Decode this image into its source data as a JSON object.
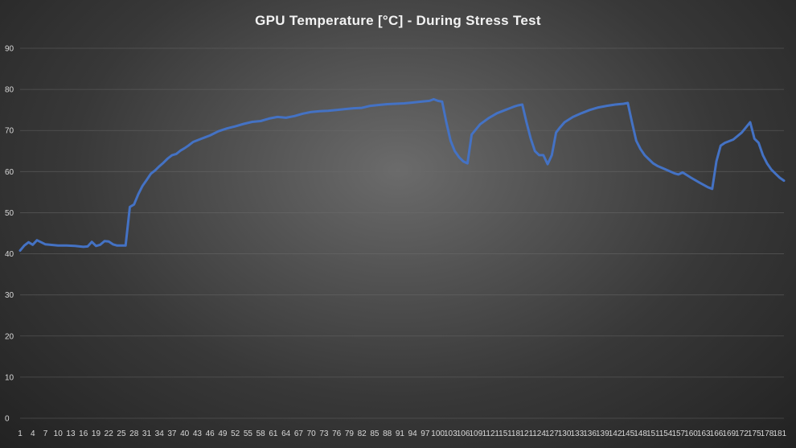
{
  "chart_data": {
    "type": "line",
    "title": "GPU Temperature  [°C] - During  Stress  Test",
    "xlabel": "",
    "ylabel": "",
    "ylim": [
      0,
      90
    ],
    "yticks": [
      0,
      10,
      20,
      30,
      40,
      50,
      60,
      70,
      80,
      90
    ],
    "xlim": [
      1,
      182
    ],
    "xticks": [
      1,
      4,
      7,
      10,
      13,
      16,
      19,
      22,
      25,
      28,
      31,
      34,
      37,
      40,
      43,
      46,
      49,
      52,
      55,
      58,
      61,
      64,
      67,
      70,
      73,
      76,
      79,
      82,
      85,
      88,
      91,
      94,
      97,
      100,
      103,
      106,
      109,
      112,
      115,
      118,
      121,
      124,
      127,
      130,
      133,
      136,
      139,
      142,
      145,
      148,
      151,
      154,
      157,
      160,
      163,
      166,
      169,
      172,
      175,
      178,
      181
    ],
    "grid": true,
    "legend": "none",
    "series_color": "#4472c4",
    "series": [
      {
        "x": [
          1,
          2,
          3,
          4,
          5,
          6,
          7,
          8,
          10,
          12,
          14,
          16,
          17,
          18,
          19,
          20,
          21,
          22,
          23,
          24,
          26,
          27,
          28,
          29,
          30,
          31,
          32,
          33,
          34,
          35,
          36,
          37,
          38,
          39,
          40,
          41,
          42,
          44,
          46,
          48,
          50,
          52,
          54,
          56,
          58,
          60,
          62,
          64,
          66,
          68,
          70,
          72,
          74,
          76,
          78,
          80,
          82,
          84,
          86,
          88,
          90,
          92,
          94,
          96,
          98,
          99,
          100,
          101,
          102,
          103,
          104,
          105,
          106,
          107,
          108,
          110,
          112,
          114,
          116,
          118,
          119,
          120,
          121,
          122,
          123,
          124,
          125,
          126,
          127,
          128,
          129,
          130,
          132,
          134,
          136,
          138,
          140,
          142,
          144,
          145,
          146,
          147,
          148,
          149,
          150,
          151,
          152,
          154,
          156,
          157,
          158,
          160,
          162,
          164,
          165,
          166,
          167,
          168,
          170,
          172,
          174,
          175,
          176,
          177,
          178,
          179,
          180,
          181,
          182
        ],
        "values": [
          40.8,
          42,
          42.8,
          42.2,
          43.3,
          42.8,
          42.3,
          42.2,
          42,
          42,
          41.9,
          41.7,
          41.8,
          42.9,
          41.9,
          42.2,
          43.1,
          43.0,
          42.3,
          42.0,
          42.0,
          51.4,
          52.0,
          54.5,
          56.5,
          58.0,
          59.5,
          60.3,
          61.3,
          62.2,
          63.2,
          64.0,
          64.3,
          65.1,
          65.7,
          66.4,
          67.2,
          68.0,
          68.8,
          69.8,
          70.5,
          71.0,
          71.6,
          72.1,
          72.3,
          72.9,
          73.3,
          73.1,
          73.5,
          74.1,
          74.5,
          74.7,
          74.8,
          75.0,
          75.2,
          75.4,
          75.5,
          76.0,
          76.2,
          76.4,
          76.5,
          76.6,
          76.8,
          77.0,
          77.2,
          77.6,
          77.2,
          77.0,
          72.0,
          67.5,
          65.0,
          63.5,
          62.5,
          62.0,
          69.0,
          71.5,
          73.0,
          74.2,
          75.0,
          75.8,
          76.1,
          76.3,
          72.0,
          68.0,
          65.0,
          64.0,
          64.0,
          61.8,
          64.0,
          69.5,
          70.8,
          72.0,
          73.3,
          74.2,
          75.0,
          75.6,
          76.0,
          76.3,
          76.5,
          76.7,
          72.0,
          67.5,
          65.5,
          64.0,
          63.0,
          62.0,
          61.4,
          60.5,
          59.6,
          59.3,
          59.8,
          58.5,
          57.3,
          56.2,
          55.8,
          62.5,
          66.3,
          67.0,
          67.8,
          69.5,
          72.0,
          68.0,
          67.0,
          64.0,
          62.0,
          60.5,
          59.5,
          58.5,
          57.8
        ]
      }
    ]
  }
}
